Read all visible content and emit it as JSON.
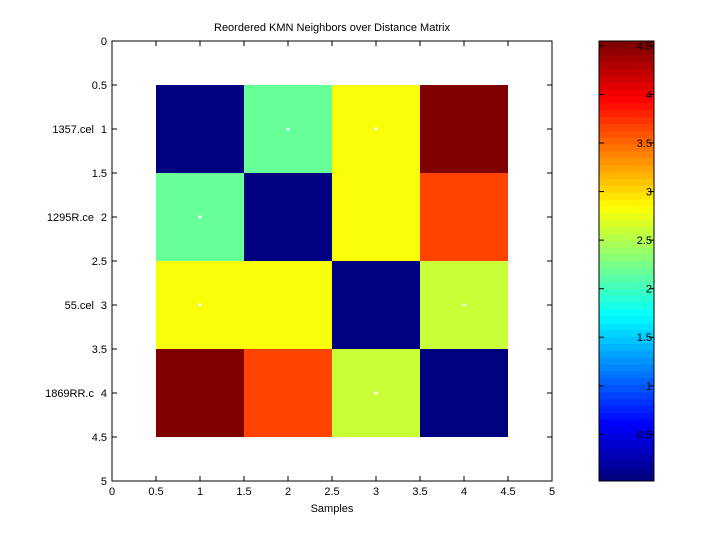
{
  "chart_data": {
    "type": "heatmap",
    "title": "Reordered KMN Neighbors over Distance Matrix",
    "xlabel": "Samples",
    "ylabel": "",
    "xlim": [
      0,
      5
    ],
    "ylim": [
      0,
      5
    ],
    "xticks": [
      "0",
      "0.5",
      "1",
      "1.5",
      "2",
      "2.5",
      "3",
      "3.5",
      "4",
      "4.5",
      "5"
    ],
    "yticks": [
      "0",
      "0.5",
      "1",
      "1.5",
      "2",
      "2.5",
      "3",
      "3.5",
      "4",
      "4.5",
      "5"
    ],
    "row_labels": [
      "1357.cel",
      "1295R.ce",
      "55.cel",
      "1869RR.c"
    ],
    "matrix": [
      [
        0.02,
        2.2,
        2.8,
        4.55
      ],
      [
        2.2,
        0.02,
        2.8,
        3.7
      ],
      [
        2.8,
        2.8,
        0.02,
        2.6
      ],
      [
        4.55,
        3.7,
        2.6,
        0.02
      ]
    ],
    "neighbor_markers": [
      [
        1,
        2
      ],
      [
        1,
        3
      ],
      [
        2,
        1
      ],
      [
        3,
        1
      ],
      [
        3,
        4
      ],
      [
        4,
        3
      ]
    ],
    "colorbar": {
      "range": [
        0.02,
        4.55
      ],
      "ticks": [
        "0.5",
        "1",
        "1.5",
        "2",
        "2.5",
        "3",
        "3.5",
        "4",
        "4.5"
      ],
      "colormap": "jet"
    }
  }
}
